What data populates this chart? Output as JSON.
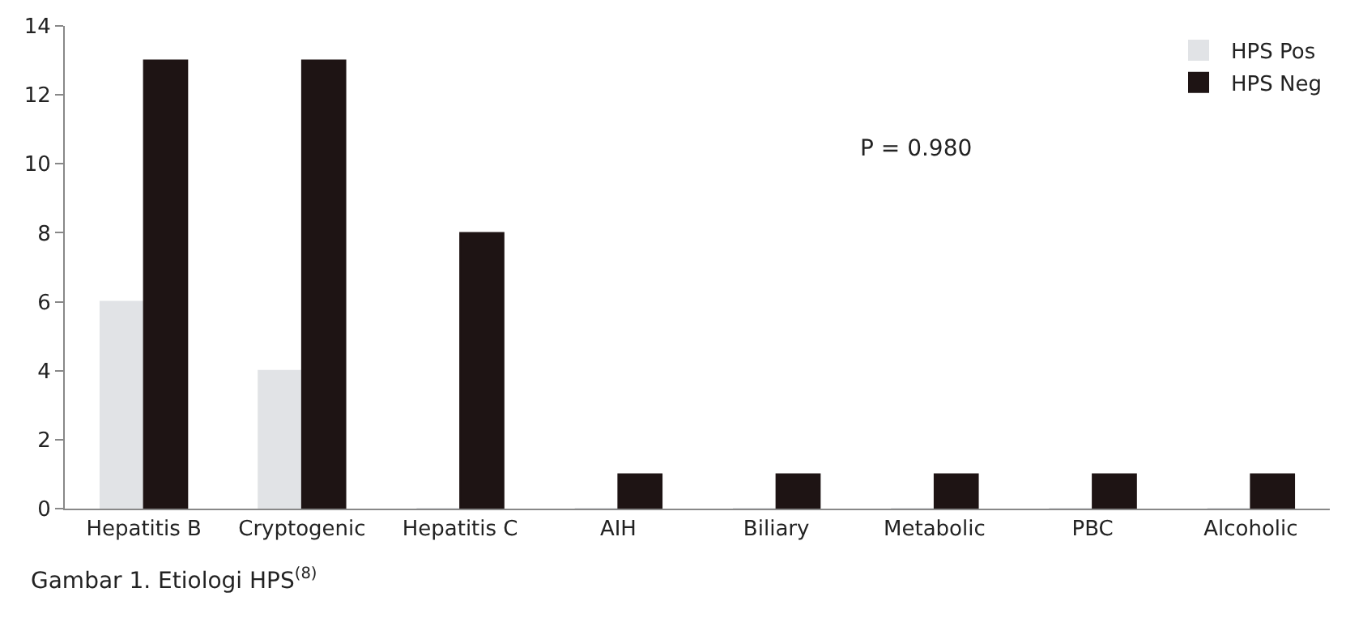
{
  "chart_data": {
    "type": "bar",
    "categories": [
      "Hepatitis B",
      "Cryptogenic",
      "Hepatitis C",
      "AIH",
      "Biliary",
      "Metabolic",
      "PBC",
      "Alcoholic"
    ],
    "series": [
      {
        "name": "HPS Pos",
        "color": "#e1e3e6",
        "values": [
          6,
          4,
          0,
          0,
          0,
          0,
          0,
          0
        ]
      },
      {
        "name": "HPS Neg",
        "color": "#1e1414",
        "values": [
          13,
          13,
          8,
          1,
          1,
          1,
          1,
          1
        ]
      }
    ],
    "ylim": [
      0,
      14
    ],
    "yticks": [
      0,
      2,
      4,
      6,
      8,
      10,
      12,
      14
    ],
    "legend": "top right",
    "annotations": [
      "P = 0.980",
      "Gambar 1. Etiologi HPS$^{(8)}$"
    ]
  }
}
